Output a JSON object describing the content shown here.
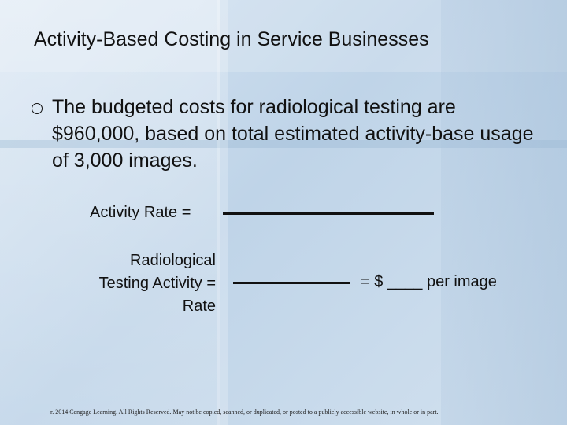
{
  "slide": {
    "title": "Activity-Based Costing in Service Businesses",
    "bullet": {
      "icon": "hollow-circle-bullet",
      "text": "The budgeted costs for radiological testing are $960,000, based on total estimated activity-base usage of 3,000 images."
    },
    "formula_1": {
      "label": "Activity Rate ="
    },
    "formula_2": {
      "label_lines": [
        "Radiological",
        "Testing Activity =",
        "Rate"
      ],
      "result": "= $ ____ per image"
    },
    "copyright": "r. 2014 Cengage Learning. All Rights Reserved. May not be copied, scanned, or duplicated, or posted to a publicly accessible website, in whole or in part."
  }
}
